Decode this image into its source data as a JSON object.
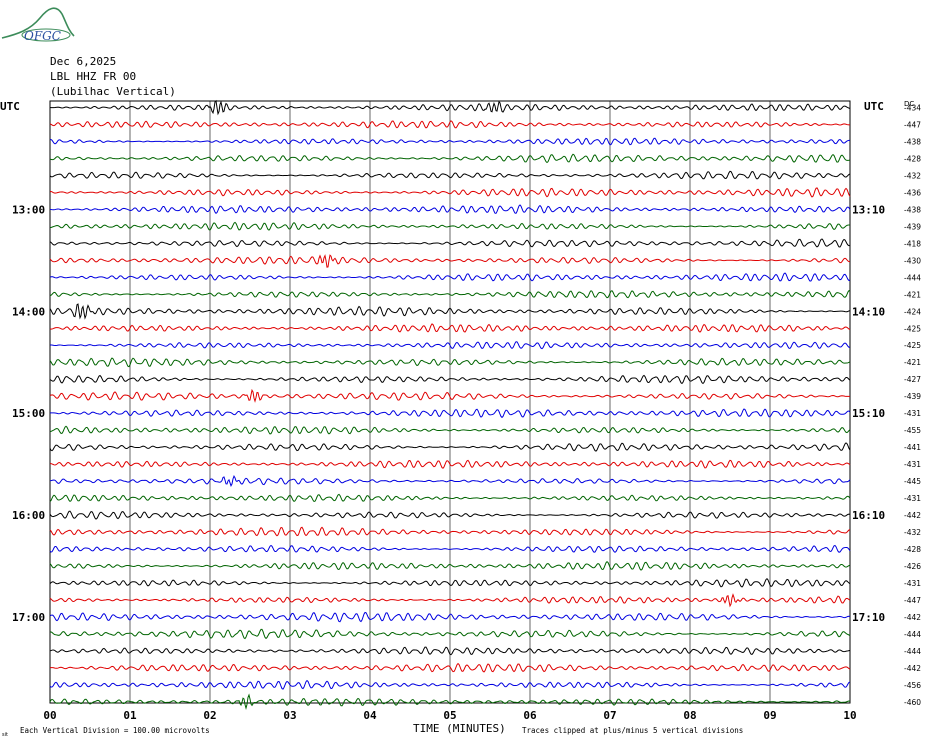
{
  "logo": {
    "text": "OFGC"
  },
  "header": {
    "date": "Dec 6,2025",
    "station": "LBL HHZ FR 00",
    "location": "(Lubilhac Vertical)"
  },
  "footer": {
    "scale_note": "Each Vertical Division =  100.00 microvolts",
    "clip_note": "Traces clipped at plus/minus 5 vertical divisions",
    "corner_mark": "sit"
  },
  "chart_data": {
    "type": "line",
    "subtype": "helicorder",
    "xlabel": "TIME (MINUTES)",
    "x_ticks": [
      "00",
      "01",
      "02",
      "03",
      "04",
      "05",
      "06",
      "07",
      "08",
      "09",
      "10"
    ],
    "xlim": [
      0,
      10
    ],
    "left_axis_title": "UTC",
    "right_axis_title": "UTC",
    "dc_header": "DC",
    "left_labels": [
      {
        "row": 6,
        "text": "13:00"
      },
      {
        "row": 12,
        "text": "14:00"
      },
      {
        "row": 18,
        "text": "15:00"
      },
      {
        "row": 24,
        "text": "16:00"
      },
      {
        "row": 30,
        "text": "17:00"
      }
    ],
    "right_labels": [
      {
        "row": 6,
        "text": "13:10"
      },
      {
        "row": 12,
        "text": "14:10"
      },
      {
        "row": 18,
        "text": "15:10"
      },
      {
        "row": 24,
        "text": "16:10"
      },
      {
        "row": 30,
        "text": "17:10"
      }
    ],
    "dc_offsets": [
      "-434",
      "-447",
      "-438",
      "-428",
      "-432",
      "-436",
      "-438",
      "-439",
      "-418",
      "-430",
      "-444",
      "-421",
      "-424",
      "-425",
      "-425",
      "-421",
      "-427",
      "-439",
      "-431",
      "-455",
      "-441",
      "-431",
      "-445",
      "-431",
      "-442",
      "-432",
      "-428",
      "-426",
      "-431",
      "-447",
      "-442",
      "-444",
      "-444",
      "-442",
      "-456",
      "-460"
    ],
    "trace_colors": [
      "#000000",
      "#e00000",
      "#0000e0",
      "#006400"
    ],
    "grid": true,
    "events": [
      {
        "row": 0,
        "minute": 2.05,
        "amplitude": 2.2
      },
      {
        "row": 0,
        "minute": 5.5,
        "amplitude": 1.6
      },
      {
        "row": 9,
        "minute": 3.4,
        "amplitude": 1.8
      },
      {
        "row": 12,
        "minute": 0.35,
        "amplitude": 2.0
      },
      {
        "row": 17,
        "minute": 2.5,
        "amplitude": 1.5
      },
      {
        "row": 22,
        "minute": 2.2,
        "amplitude": 1.4
      },
      {
        "row": 29,
        "minute": 8.45,
        "amplitude": 1.6
      },
      {
        "row": 35,
        "minute": 2.4,
        "amplitude": 1.6
      }
    ]
  }
}
